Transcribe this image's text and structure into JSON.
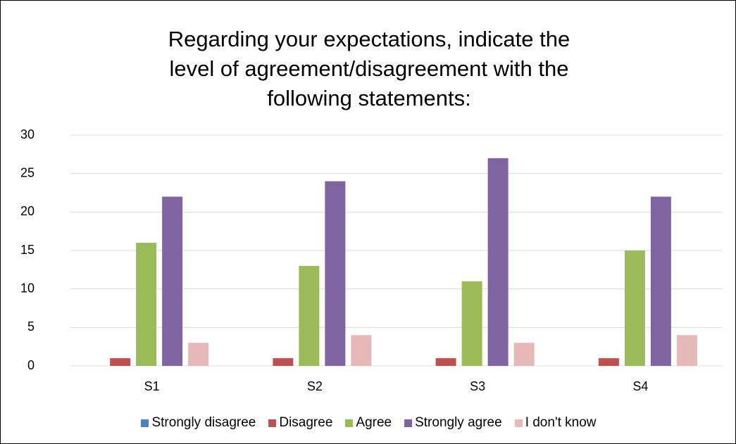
{
  "chart_data": {
    "type": "bar",
    "title": "Regarding your expectations, indicate the level of agreement/disagreement with the following statements:",
    "categories": [
      "S1",
      "S2",
      "S3",
      "S4"
    ],
    "series": [
      {
        "name": "Strongly disagree",
        "color": "#4f81bd",
        "values": [
          0,
          0,
          0,
          0
        ]
      },
      {
        "name": "Disagree",
        "color": "#c0504d",
        "values": [
          1,
          1,
          1,
          1
        ]
      },
      {
        "name": "Agree",
        "color": "#9bbb59",
        "values": [
          16,
          13,
          11,
          15
        ]
      },
      {
        "name": "Strongly agree",
        "color": "#8064a2",
        "values": [
          22,
          24,
          27,
          22
        ]
      },
      {
        "name": "I don't know",
        "color": "#e6b9b8",
        "values": [
          3,
          4,
          3,
          4
        ]
      }
    ],
    "ylim": [
      0,
      30
    ],
    "yticks": [
      0,
      5,
      10,
      15,
      20,
      25,
      30
    ],
    "grid": true,
    "legend": "bottom"
  }
}
